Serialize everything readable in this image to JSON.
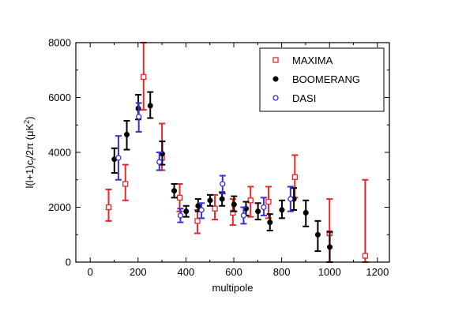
{
  "chart_data": {
    "type": "scatter",
    "title": "",
    "xlabel": "multipole",
    "ylabel": "l(l+1)c",
    "ylabel_sub": "l",
    "ylabel_rest": "/2π (μK",
    "ylabel_sup": "2",
    "ylabel_close": ")",
    "xlim": [
      -60,
      1250
    ],
    "ylim": [
      0,
      8000
    ],
    "x_ticks": [
      0,
      200,
      400,
      600,
      800,
      1000,
      1200
    ],
    "y_ticks": [
      0,
      2000,
      4000,
      6000,
      8000
    ],
    "x_tick_labels": [
      "0",
      "200",
      "400",
      "600",
      "800",
      "1000",
      "1200"
    ],
    "y_tick_labels": [
      "0",
      "2000",
      "4000",
      "6000",
      "8000"
    ],
    "grid": false,
    "legend_position": "top-right",
    "series": [
      {
        "name": "MAXIMA",
        "marker": "open-square",
        "color": "#e8262b",
        "points": [
          {
            "x": 77,
            "y": 2000,
            "lo": 1500,
            "hi": 2650
          },
          {
            "x": 147,
            "y": 2850,
            "lo": 2250,
            "hi": 3550
          },
          {
            "x": 223,
            "y": 6750,
            "lo": 5550,
            "hi": 8000
          },
          {
            "x": 300,
            "y": 3800,
            "lo": 3350,
            "hi": 5050
          },
          {
            "x": 374,
            "y": 2350,
            "lo": 1850,
            "hi": 2850
          },
          {
            "x": 448,
            "y": 1500,
            "lo": 1050,
            "hi": 1900
          },
          {
            "x": 521,
            "y": 1950,
            "lo": 1550,
            "hi": 2450
          },
          {
            "x": 596,
            "y": 1800,
            "lo": 1350,
            "hi": 2300
          },
          {
            "x": 670,
            "y": 2250,
            "lo": 1650,
            "hi": 2750
          },
          {
            "x": 745,
            "y": 2200,
            "lo": 1600,
            "hi": 2750
          },
          {
            "x": 855,
            "y": 3100,
            "lo": 2350,
            "hi": 3900
          },
          {
            "x": 1000,
            "y": 1050,
            "lo": 0,
            "hi": 2300
          },
          {
            "x": 1149,
            "y": 230,
            "lo": 0,
            "hi": 3000
          }
        ]
      },
      {
        "name": "BOOMERANG",
        "marker": "filled-circle",
        "color": "#000000",
        "points": [
          {
            "x": 101,
            "y": 3750,
            "lo": 3250,
            "hi": 4150
          },
          {
            "x": 153,
            "y": 4650,
            "lo": 4100,
            "hi": 5150
          },
          {
            "x": 201,
            "y": 5600,
            "lo": 5200,
            "hi": 6100
          },
          {
            "x": 251,
            "y": 5700,
            "lo": 5250,
            "hi": 6200
          },
          {
            "x": 301,
            "y": 3950,
            "lo": 3550,
            "hi": 4400
          },
          {
            "x": 351,
            "y": 2600,
            "lo": 2350,
            "hi": 2850
          },
          {
            "x": 401,
            "y": 1850,
            "lo": 1650,
            "hi": 2050
          },
          {
            "x": 451,
            "y": 2050,
            "lo": 1850,
            "hi": 2300
          },
          {
            "x": 501,
            "y": 2250,
            "lo": 2050,
            "hi": 2450
          },
          {
            "x": 551,
            "y": 2300,
            "lo": 2050,
            "hi": 2550
          },
          {
            "x": 601,
            "y": 2100,
            "lo": 1850,
            "hi": 2400
          },
          {
            "x": 651,
            "y": 1950,
            "lo": 1700,
            "hi": 2200
          },
          {
            "x": 701,
            "y": 1850,
            "lo": 1550,
            "hi": 2150
          },
          {
            "x": 751,
            "y": 1450,
            "lo": 1150,
            "hi": 1750
          },
          {
            "x": 801,
            "y": 1900,
            "lo": 1600,
            "hi": 2250
          },
          {
            "x": 851,
            "y": 2300,
            "lo": 1900,
            "hi": 2700
          },
          {
            "x": 901,
            "y": 1800,
            "lo": 1300,
            "hi": 2250
          },
          {
            "x": 951,
            "y": 1000,
            "lo": 400,
            "hi": 1500
          },
          {
            "x": 1001,
            "y": 550,
            "lo": 0,
            "hi": 1100
          }
        ]
      },
      {
        "name": "DASI",
        "marker": "open-circle",
        "color": "#3a2fd8",
        "points": [
          {
            "x": 118,
            "y": 3800,
            "lo": 3000,
            "hi": 4600
          },
          {
            "x": 203,
            "y": 5300,
            "lo": 4750,
            "hi": 5800
          },
          {
            "x": 289,
            "y": 3650,
            "lo": 3350,
            "hi": 4000
          },
          {
            "x": 377,
            "y": 1700,
            "lo": 1450,
            "hi": 1950
          },
          {
            "x": 465,
            "y": 1900,
            "lo": 1600,
            "hi": 2150
          },
          {
            "x": 553,
            "y": 2850,
            "lo": 2500,
            "hi": 3150
          },
          {
            "x": 641,
            "y": 1700,
            "lo": 1400,
            "hi": 2000
          },
          {
            "x": 725,
            "y": 2000,
            "lo": 1700,
            "hi": 2350
          },
          {
            "x": 837,
            "y": 2300,
            "lo": 1850,
            "hi": 2750
          }
        ]
      }
    ]
  }
}
